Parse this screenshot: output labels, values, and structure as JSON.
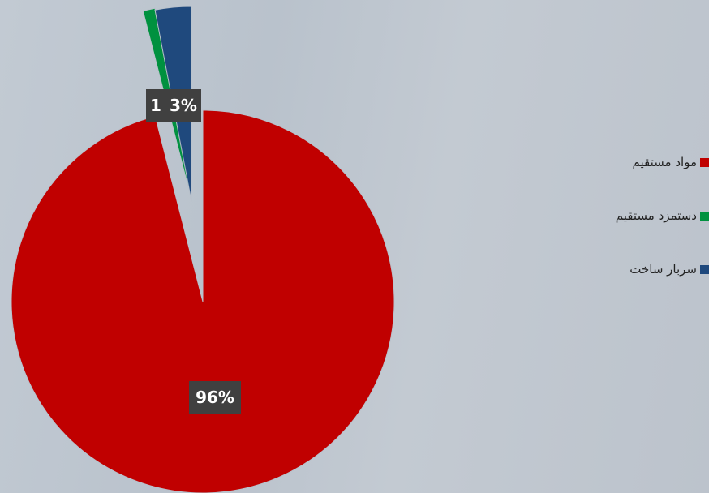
{
  "chart_data": {
    "type": "pie",
    "title": "",
    "categories": [
      "مواد مستقیم",
      "دستمزد مستقیم",
      "سربار ساخت"
    ],
    "values": [
      96,
      1,
      3
    ],
    "data_labels": [
      "96%",
      "1",
      "3%"
    ],
    "colors": [
      "#c00000",
      "#00913f",
      "#1f497d"
    ],
    "exploded": [
      false,
      true,
      true
    ],
    "legend_position": "right"
  }
}
